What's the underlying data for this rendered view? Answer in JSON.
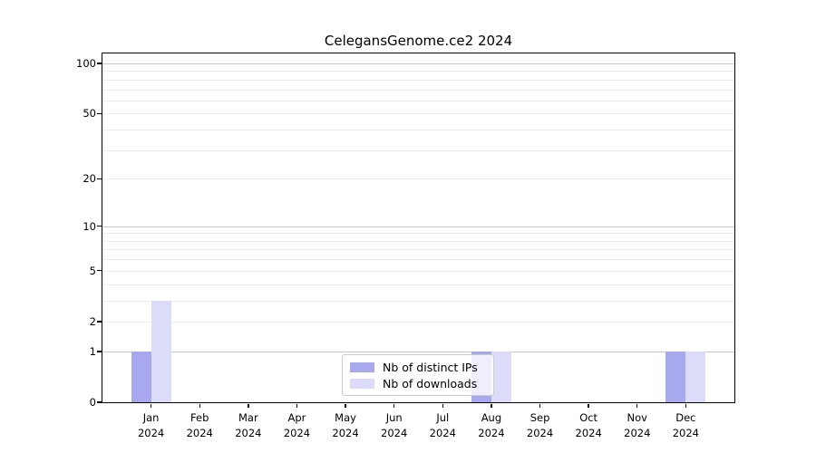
{
  "chart_data": {
    "type": "bar",
    "title": "CelegansGenome.ce2 2024",
    "categories": [
      "Jan",
      "Feb",
      "Mar",
      "Apr",
      "May",
      "Jun",
      "Jul",
      "Aug",
      "Sep",
      "Oct",
      "Nov",
      "Dec"
    ],
    "year_label": "2024",
    "series": [
      {
        "name": "Nb of distinct IPs",
        "color": "#a8a8ef",
        "values": [
          1,
          0,
          0,
          0,
          0,
          0,
          0,
          1,
          0,
          0,
          0,
          1
        ]
      },
      {
        "name": "Nb of downloads",
        "color": "#dcdcf8",
        "values": [
          3,
          0,
          0,
          0,
          0,
          0,
          0,
          1,
          0,
          0,
          0,
          1
        ]
      }
    ],
    "yscale": "log1p",
    "ylim": [
      0,
      115
    ],
    "yticks": [
      0,
      1,
      2,
      5,
      10,
      20,
      50,
      100
    ],
    "major_gridlines": [
      1,
      10,
      100
    ],
    "minor_gridlines": [
      2,
      3,
      4,
      5,
      6,
      7,
      8,
      9,
      20,
      30,
      40,
      50,
      60,
      70,
      80,
      90
    ],
    "grid": true,
    "legend_position": "bottom-center"
  },
  "colors": {
    "background": "#ffffff",
    "axis": "#000000",
    "grid_major": "#c6c6c6",
    "grid_minor": "#ececec",
    "legend_border": "#cccccc",
    "bar_distinct_ips": "#a8a8ef",
    "bar_downloads": "#dcdcf8"
  }
}
